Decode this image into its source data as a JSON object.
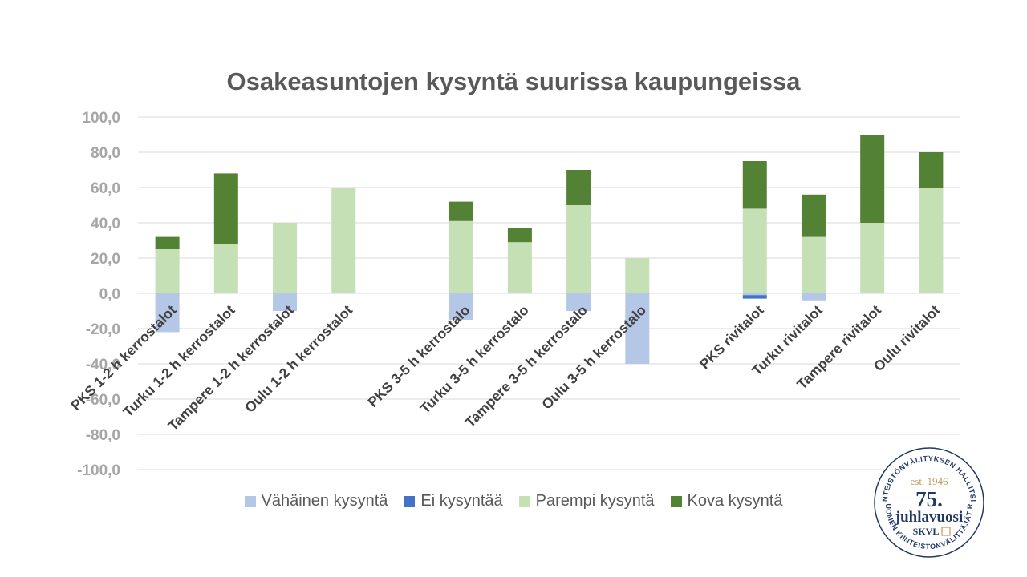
{
  "title": "Osakeasuntojen kysyntä suurissa kaupungeissa",
  "colors": {
    "vahainen": "#b4c7e7",
    "ei": "#4472c4",
    "parempi": "#c5e0b4",
    "kova": "#548235",
    "grid": "#d9d9d9",
    "seal_navy": "#1f3864",
    "seal_gold": "#c09a55"
  },
  "legend": {
    "items": [
      {
        "label": "Vähäinen kysyntä",
        "color": "#b4c7e7"
      },
      {
        "label": "Ei kysyntää",
        "color": "#4472c4"
      },
      {
        "label": "Parempi kysyntä",
        "color": "#c5e0b4"
      },
      {
        "label": "Kova kysyntä",
        "color": "#548235"
      }
    ]
  },
  "chart_data": {
    "type": "bar",
    "stacked": true,
    "title": "Osakeasuntojen kysyntä suurissa kaupungeissa",
    "ylim": [
      -100,
      100
    ],
    "yticks": [
      "100,0",
      "80,0",
      "60,0",
      "40,0",
      "20,0",
      "0,0",
      "-20,0",
      "-40,0",
      "-60,0",
      "-80,0",
      "-100,0"
    ],
    "grid": true,
    "legend_position": "bottom",
    "categories": [
      "PKS 1-2 h kerrostalot",
      "Turku 1-2 h kerrostalot",
      "Tampere 1-2 h kerrostalot",
      "Oulu 1-2 h kerrostalot",
      "",
      "PKS 3-5 h kerrostalo",
      "Turku 3-5 h kerrostalo",
      "Tampere 3-5 h kerrostalo",
      "Oulu 3-5 h kerrostalo",
      "",
      "PKS rivitalot",
      "Turku rivitalot",
      "Tampere rivitalot",
      "Oulu rivitalot"
    ],
    "series": [
      {
        "name": "Vähäinen kysyntä",
        "values": [
          -22,
          0,
          -10,
          0,
          0,
          -15,
          0,
          -10,
          -40,
          0,
          -1,
          -4,
          0,
          0
        ]
      },
      {
        "name": "Ei kysyntää",
        "values": [
          0,
          0,
          0,
          0,
          0,
          0,
          0,
          0,
          0,
          0,
          -2,
          0,
          0,
          0
        ]
      },
      {
        "name": "Parempi kysyntä",
        "values": [
          25,
          28,
          40,
          60,
          0,
          41,
          29,
          50,
          20,
          0,
          48,
          32,
          40,
          60
        ]
      },
      {
        "name": "Kova kysyntä",
        "values": [
          7,
          40,
          0,
          0,
          0,
          11,
          8,
          20,
          0,
          0,
          27,
          24,
          50,
          20
        ]
      }
    ]
  },
  "seal": {
    "top_text": "KIINTEISTÖNVÄLITYKSEN HALLITSIJA",
    "bottom_text": "SUOMEN KIINTEISTÖNVÄLITTÄJÄT RY",
    "est": "est. 1946",
    "number": "75.",
    "word": "juhlavuosi",
    "brand": "SKVL"
  }
}
